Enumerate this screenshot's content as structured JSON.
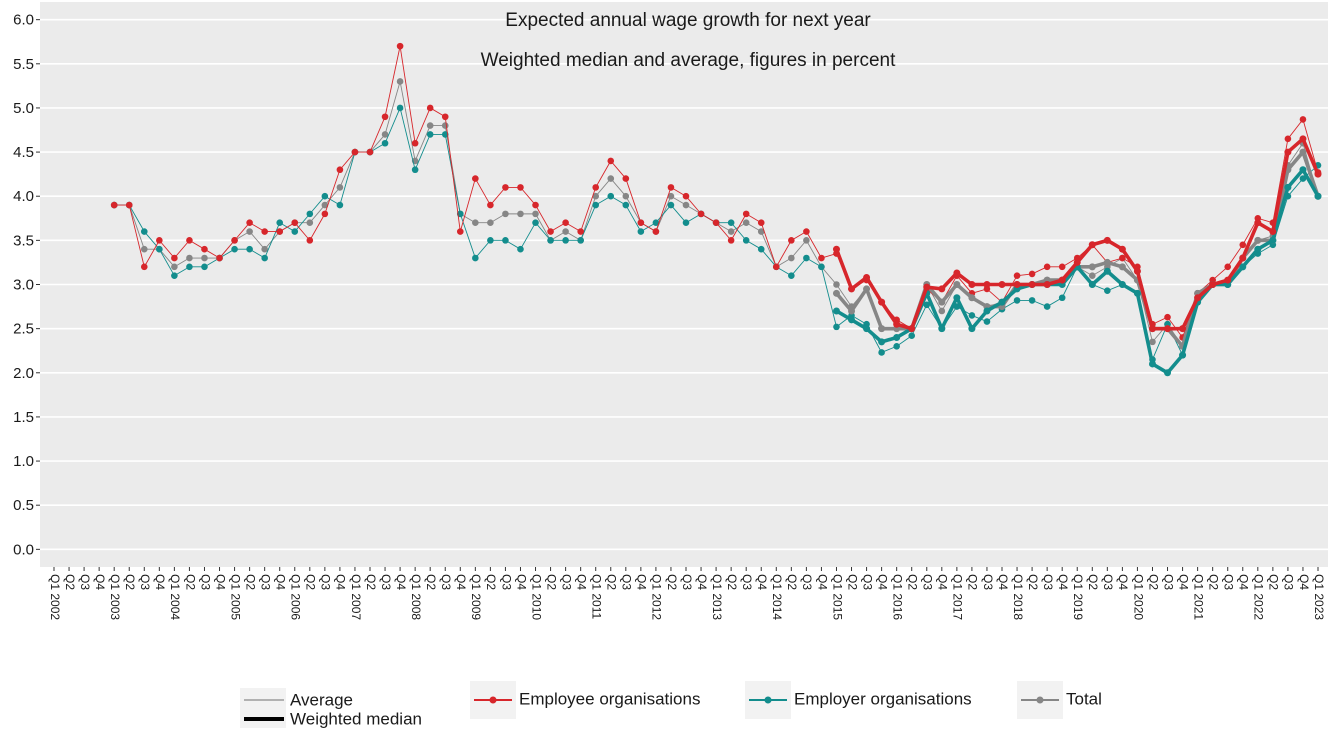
{
  "chart_data": {
    "type": "line",
    "title": "Expected annual wage growth for next year",
    "subtitle": "Weighted median and average, figures in percent",
    "categories": [
      "Q1 2002",
      "Q2",
      "Q3",
      "Q4",
      "Q1 2003",
      "Q2",
      "Q3",
      "Q4",
      "Q1 2004",
      "Q2",
      "Q3",
      "Q4",
      "Q1 2005",
      "Q2",
      "Q3",
      "Q4",
      "Q1 2006",
      "Q2",
      "Q3",
      "Q4",
      "Q1 2007",
      "Q2",
      "Q3",
      "Q4",
      "Q1 2008",
      "Q2",
      "Q3",
      "Q4",
      "Q1 2009",
      "Q2",
      "Q3",
      "Q4",
      "Q1 2010",
      "Q2",
      "Q3",
      "Q4",
      "Q1 2011",
      "Q2",
      "Q3",
      "Q4",
      "Q1 2012",
      "Q2",
      "Q3",
      "Q4",
      "Q1 2013",
      "Q2",
      "Q3",
      "Q4",
      "Q1 2014",
      "Q2",
      "Q3",
      "Q4",
      "Q1 2015",
      "Q2",
      "Q3",
      "Q4",
      "Q1 2016",
      "Q2",
      "Q3",
      "Q4",
      "Q1 2017",
      "Q2",
      "Q3",
      "Q4",
      "Q1 2018",
      "Q2",
      "Q3",
      "Q4",
      "Q1 2019",
      "Q2",
      "Q3",
      "Q4",
      "Q1 2020",
      "Q2",
      "Q3",
      "Q4",
      "Q1 2021",
      "Q2",
      "Q3",
      "Q4",
      "Q1 2022",
      "Q2",
      "Q3",
      "Q4",
      "Q1 2023"
    ],
    "ylim": [
      -0.2,
      6.2
    ],
    "yticks": [
      {
        "value": 0,
        "label": "0.0"
      },
      0.5,
      {
        "value": 1,
        "label": "1.0"
      },
      1.5,
      {
        "value": 2,
        "label": "2.0"
      },
      2.5,
      {
        "value": 3,
        "label": "3.0"
      },
      3.5,
      {
        "value": 4,
        "label": "4.0"
      },
      4.5,
      {
        "value": 5,
        "label": "5.0"
      },
      5.5,
      {
        "value": 6,
        "label": "6.0"
      }
    ],
    "grid": true,
    "legend": "bottom",
    "measures": [
      "Average",
      "Weighted median"
    ],
    "series": [
      {
        "name": "Employee organisations",
        "color": "#d7262b",
        "average": [
          null,
          null,
          null,
          null,
          3.9,
          3.9,
          3.2,
          3.5,
          3.3,
          3.5,
          3.4,
          3.3,
          3.5,
          3.7,
          3.6,
          3.6,
          3.7,
          3.5,
          3.8,
          4.3,
          4.5,
          4.5,
          4.9,
          5.7,
          4.6,
          5.0,
          4.9,
          3.6,
          4.2,
          3.9,
          4.1,
          4.1,
          3.9,
          3.6,
          3.7,
          3.6,
          4.1,
          4.4,
          4.2,
          3.7,
          3.6,
          4.1,
          4.0,
          3.8,
          3.7,
          3.5,
          3.8,
          3.7,
          3.2,
          3.5,
          3.6,
          3.3,
          3.35,
          2.95,
          3.05,
          2.8,
          2.6,
          2.5,
          2.95,
          2.8,
          3.1,
          2.9,
          2.95,
          2.8,
          3.1,
          3.12,
          3.2,
          3.2,
          3.3,
          3.45,
          3.25,
          3.3,
          3.2,
          2.55,
          2.63,
          2.4,
          2.9,
          3.05,
          3.2,
          3.45,
          3.75,
          3.7,
          4.65,
          4.87,
          4.27
        ],
        "median": [
          null,
          null,
          null,
          null,
          null,
          null,
          null,
          null,
          null,
          null,
          null,
          null,
          null,
          null,
          null,
          null,
          null,
          null,
          null,
          null,
          null,
          null,
          null,
          null,
          null,
          null,
          null,
          null,
          null,
          null,
          null,
          null,
          null,
          null,
          null,
          null,
          null,
          null,
          null,
          null,
          null,
          null,
          null,
          null,
          null,
          null,
          null,
          null,
          null,
          null,
          null,
          null,
          3.4,
          2.95,
          3.08,
          2.8,
          2.55,
          2.5,
          2.97,
          2.95,
          3.13,
          3.0,
          3.0,
          3.0,
          3.0,
          3.0,
          3.0,
          3.05,
          3.25,
          3.45,
          3.5,
          3.4,
          3.15,
          2.5,
          2.5,
          2.5,
          2.85,
          3.0,
          3.05,
          3.3,
          3.7,
          3.6,
          4.5,
          4.65,
          4.25
        ]
      },
      {
        "name": "Employer organisations",
        "color": "#138d8d",
        "average": [
          null,
          null,
          null,
          null,
          3.9,
          3.9,
          3.6,
          3.4,
          3.1,
          3.2,
          3.2,
          3.3,
          3.4,
          3.4,
          3.3,
          3.7,
          3.6,
          3.8,
          4.0,
          3.9,
          4.5,
          4.5,
          4.6,
          5.0,
          4.3,
          4.7,
          4.7,
          3.8,
          3.3,
          3.5,
          3.5,
          3.4,
          3.7,
          3.5,
          3.5,
          3.5,
          3.9,
          4.0,
          3.9,
          3.6,
          3.7,
          3.9,
          3.7,
          3.8,
          3.7,
          3.7,
          3.5,
          3.4,
          3.2,
          3.1,
          3.3,
          3.2,
          2.52,
          2.65,
          2.55,
          2.23,
          2.3,
          2.42,
          2.77,
          2.5,
          2.75,
          2.65,
          2.58,
          2.72,
          2.82,
          2.82,
          2.75,
          2.85,
          3.2,
          3.0,
          2.93,
          3.0,
          2.9,
          2.15,
          2.55,
          2.2,
          2.85,
          3.0,
          3.0,
          3.2,
          3.35,
          3.45,
          4.0,
          4.2,
          4.35
        ],
        "median": [
          null,
          null,
          null,
          null,
          null,
          null,
          null,
          null,
          null,
          null,
          null,
          null,
          null,
          null,
          null,
          null,
          null,
          null,
          null,
          null,
          null,
          null,
          null,
          null,
          null,
          null,
          null,
          null,
          null,
          null,
          null,
          null,
          null,
          null,
          null,
          null,
          null,
          null,
          null,
          null,
          null,
          null,
          null,
          null,
          null,
          null,
          null,
          null,
          null,
          null,
          null,
          null,
          2.7,
          2.6,
          2.5,
          2.35,
          2.4,
          2.5,
          2.9,
          2.5,
          2.85,
          2.5,
          2.7,
          2.8,
          2.95,
          3.0,
          3.0,
          3.0,
          3.2,
          3.0,
          3.15,
          3.0,
          2.9,
          2.1,
          2.0,
          2.2,
          2.8,
          3.0,
          3.0,
          3.2,
          3.4,
          3.5,
          4.1,
          4.3,
          4.0
        ]
      },
      {
        "name": "Total",
        "color": "#868686",
        "average": [
          null,
          null,
          null,
          null,
          3.9,
          3.9,
          3.4,
          3.4,
          3.2,
          3.3,
          3.3,
          3.3,
          3.5,
          3.6,
          3.4,
          3.6,
          3.7,
          3.7,
          3.9,
          4.1,
          4.5,
          4.5,
          4.7,
          5.3,
          4.4,
          4.8,
          4.8,
          3.8,
          3.7,
          3.7,
          3.8,
          3.8,
          3.8,
          3.5,
          3.6,
          3.5,
          4.0,
          4.2,
          4.0,
          3.7,
          3.6,
          4.0,
          3.9,
          3.8,
          3.7,
          3.6,
          3.7,
          3.6,
          3.2,
          3.3,
          3.5,
          3.2,
          3.0,
          2.75,
          2.95,
          2.5,
          2.5,
          2.5,
          3.0,
          2.7,
          3.0,
          2.85,
          2.75,
          2.8,
          3.0,
          3.0,
          3.05,
          3.05,
          3.2,
          3.1,
          3.2,
          3.3,
          3.05,
          2.35,
          2.55,
          2.3,
          2.9,
          3.0,
          3.0,
          3.3,
          3.5,
          3.55,
          4.35,
          4.6,
          4.0
        ],
        "median": [
          null,
          null,
          null,
          null,
          null,
          null,
          null,
          null,
          null,
          null,
          null,
          null,
          null,
          null,
          null,
          null,
          null,
          null,
          null,
          null,
          null,
          null,
          null,
          null,
          null,
          null,
          null,
          null,
          null,
          null,
          null,
          null,
          null,
          null,
          null,
          null,
          null,
          null,
          null,
          null,
          null,
          null,
          null,
          null,
          null,
          null,
          null,
          null,
          null,
          null,
          null,
          null,
          2.9,
          2.7,
          2.95,
          2.5,
          2.5,
          2.5,
          3.0,
          2.8,
          3.0,
          2.85,
          2.75,
          2.75,
          3.0,
          3.0,
          3.05,
          3.05,
          3.2,
          3.2,
          3.25,
          3.2,
          3.05,
          2.5,
          2.5,
          2.3,
          2.9,
          3.0,
          3.0,
          3.3,
          3.5,
          3.5,
          4.3,
          4.5,
          4.0
        ]
      }
    ]
  }
}
